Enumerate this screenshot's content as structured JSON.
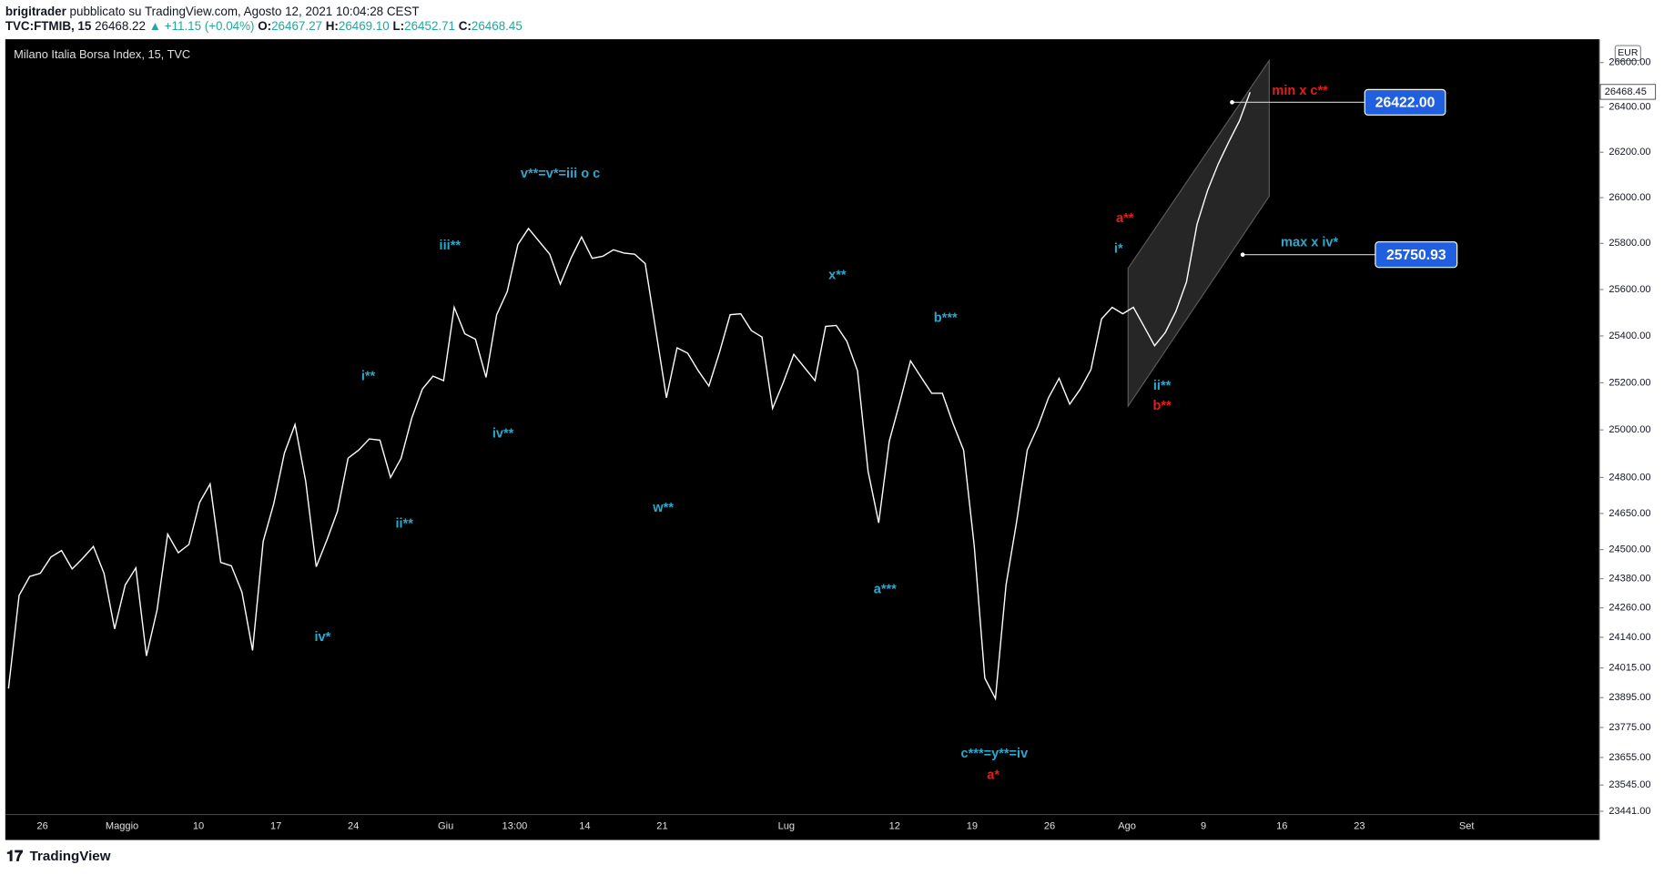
{
  "header": {
    "author": "brigitrader",
    "published": "pubblicato su TradingView.com, Agosto 12, 2021 10:04:28 CEST",
    "symbol": "TVC:FTMIB, 15",
    "price": "26468.22",
    "change": "▲ +11.15 (+0.04%)",
    "open_label": "O:",
    "open": "26467.27",
    "high_label": "H:",
    "high": "26469.10",
    "low_label": "L:",
    "low": "26452.71",
    "close_label": "C:",
    "close": "26468.45"
  },
  "footer": {
    "logo": "TradingView"
  },
  "chart_data": {
    "type": "line",
    "title": "Milano Italia Borsa Index, 15, TVC",
    "currency": "EUR",
    "log_scale": true,
    "background": "#000000",
    "series": [
      {
        "name": "FTMIB",
        "color": "#ffffff",
        "values": [
          23932,
          24311,
          24389,
          24402,
          24469,
          24496,
          24420,
          24464,
          24513,
          24402,
          24174,
          24354,
          24424,
          24064,
          24251,
          24564,
          24487,
          24521,
          24695,
          24773,
          24447,
          24433,
          24324,
          24086,
          24534,
          24691,
          24902,
          25023,
          24786,
          24429,
          24539,
          24659,
          24881,
          24915,
          24962,
          24957,
          24800,
          24881,
          25050,
          25173,
          25228,
          25209,
          25523,
          25409,
          25386,
          25223,
          25491,
          25591,
          25795,
          25865,
          25809,
          25753,
          25623,
          25735,
          25828,
          25735,
          25744,
          25772,
          25758,
          25753,
          25712,
          25423,
          25136,
          25349,
          25326,
          25251,
          25186,
          25330,
          25491,
          25495,
          25423,
          25395,
          25091,
          25200,
          25321,
          25265,
          25209,
          25441,
          25445,
          25377,
          25251,
          24826,
          24611,
          24953,
          25118,
          25293,
          25223,
          25155,
          25155,
          25027,
          24915,
          24517,
          23974,
          23891,
          24354,
          24616,
          24915,
          25014,
          25136,
          25219,
          25109,
          25173,
          25256,
          25473,
          25523,
          25495,
          25523,
          25441,
          25358,
          25414,
          25505,
          25632,
          25884,
          26033,
          26149,
          26247,
          26340,
          26467
        ]
      }
    ],
    "ylim": [
      23428,
      26700
    ],
    "yticks": [
      {
        "value": 26600,
        "label": "26600.00"
      },
      {
        "value": 26400,
        "label": "26400.00"
      },
      {
        "value": 26200,
        "label": "26200.00"
      },
      {
        "value": 26000,
        "label": "26000.00"
      },
      {
        "value": 25800,
        "label": "25800.00"
      },
      {
        "value": 25600,
        "label": "25600.00"
      },
      {
        "value": 25400,
        "label": "25400.00"
      },
      {
        "value": 25200,
        "label": "25200.00"
      },
      {
        "value": 25000,
        "label": "25000.00"
      },
      {
        "value": 24800,
        "label": "24800.00"
      },
      {
        "value": 24650,
        "label": "24650.00"
      },
      {
        "value": 24500,
        "label": "24500.00"
      },
      {
        "value": 24380,
        "label": "24380.00"
      },
      {
        "value": 24260,
        "label": "24260.00"
      },
      {
        "value": 24140,
        "label": "24140.00"
      },
      {
        "value": 24015,
        "label": "24015.00"
      },
      {
        "value": 23895,
        "label": "23895.00"
      },
      {
        "value": 23775,
        "label": "23775.00"
      },
      {
        "value": 23655,
        "label": "23655.00"
      },
      {
        "value": 23545,
        "label": "23545.00"
      },
      {
        "value": 23441,
        "label": "23441.00"
      }
    ],
    "current_price": {
      "value": 26468.45,
      "label": "26468.45"
    },
    "xaxis_labels": [
      "26",
      "Maggio",
      "10",
      "17",
      "24",
      "Giu",
      "13:00",
      "14",
      "21",
      "Lug",
      "12",
      "19",
      "26",
      "Ago",
      "9",
      "16",
      "23",
      "Set"
    ],
    "price_levels": [
      {
        "value": 26422,
        "label": "26422.00"
      },
      {
        "value": 25750.93,
        "label": "25750.93"
      }
    ],
    "annotations": [
      {
        "text": "v**=v*=iii o c",
        "color": "#2aa9cf"
      },
      {
        "text": "iii**",
        "color": "#2aa9cf"
      },
      {
        "text": "i**",
        "color": "#2aa9cf"
      },
      {
        "text": "iv**",
        "color": "#2aa9cf"
      },
      {
        "text": "ii**",
        "color": "#2aa9cf"
      },
      {
        "text": "iv*",
        "color": "#2aa9cf"
      },
      {
        "text": "w**",
        "color": "#2aa9cf"
      },
      {
        "text": "x**",
        "color": "#2aa9cf"
      },
      {
        "text": "b***",
        "color": "#2aa9cf"
      },
      {
        "text": "a***",
        "color": "#2aa9cf"
      },
      {
        "text": "c***=y**=iv",
        "color": "#2aa9cf"
      },
      {
        "text": "a*",
        "color": "#e0201b"
      },
      {
        "text": "a**",
        "color": "#e0201b"
      },
      {
        "text": "i*",
        "color": "#2aa9cf"
      },
      {
        "text": "ii**",
        "color": "#2aa9cf"
      },
      {
        "text": "b**",
        "color": "#e0201b"
      },
      {
        "text": "min x c**",
        "color": "#e0201b"
      },
      {
        "text": "max x iv*",
        "color": "#2aa9cf"
      }
    ]
  }
}
